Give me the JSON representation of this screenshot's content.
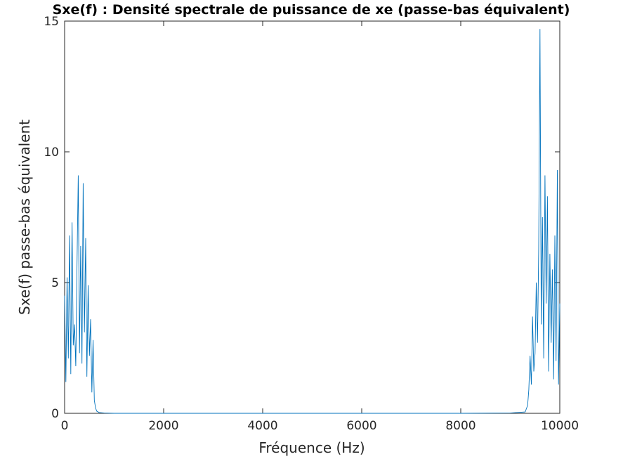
{
  "chart_data": {
    "type": "line",
    "title": "Sxe(f) : Densité spectrale de puissance de xe (passe-bas équivalent)",
    "xlabel": "Fréquence (Hz)",
    "ylabel": "Sxe(f) passe-bas équivalent",
    "xlim": [
      0,
      10000
    ],
    "ylim": [
      0,
      15
    ],
    "xticks": [
      0,
      2000,
      4000,
      6000,
      8000,
      10000
    ],
    "xtick_labels": [
      "0",
      "2000",
      "4000",
      "6000",
      "8000",
      "10000"
    ],
    "yticks": [
      0,
      5,
      10,
      15
    ],
    "ytick_labels": [
      "0",
      "5",
      "10",
      "15"
    ],
    "grid": false,
    "box": true,
    "series": [
      {
        "color": "#0072BD",
        "x": [
          0,
          25,
          50,
          75,
          100,
          125,
          150,
          175,
          200,
          225,
          250,
          275,
          300,
          325,
          350,
          375,
          400,
          425,
          450,
          475,
          500,
          525,
          550,
          575,
          600,
          625,
          650,
          700,
          800,
          1000,
          2000,
          4000,
          6000,
          8000,
          9000,
          9300,
          9350,
          9375,
          9400,
          9425,
          9450,
          9475,
          9500,
          9525,
          9550,
          9575,
          9600,
          9625,
          9650,
          9675,
          9700,
          9725,
          9750,
          9775,
          9800,
          9825,
          9850,
          9875,
          9900,
          9925,
          9950,
          9975,
          10000
        ],
        "values": [
          4.5,
          1.2,
          5.2,
          2.1,
          6.8,
          1.5,
          7.3,
          2.6,
          3.4,
          1.8,
          5.6,
          9.1,
          2.3,
          6.4,
          1.9,
          8.8,
          3.1,
          6.7,
          1.4,
          4.9,
          2.2,
          3.6,
          0.8,
          2.8,
          0.5,
          0.2,
          0.08,
          0.03,
          0.01,
          0.0,
          0.0,
          0.0,
          0.0,
          0.0,
          0.01,
          0.05,
          0.3,
          0.9,
          2.2,
          1.1,
          3.7,
          1.6,
          2.3,
          5.0,
          2.7,
          6.3,
          14.7,
          3.4,
          7.5,
          2.1,
          9.1,
          4.2,
          8.3,
          1.6,
          6.1,
          2.7,
          5.5,
          1.3,
          6.8,
          2.0,
          9.3,
          1.1,
          4.2
        ]
      }
    ]
  }
}
